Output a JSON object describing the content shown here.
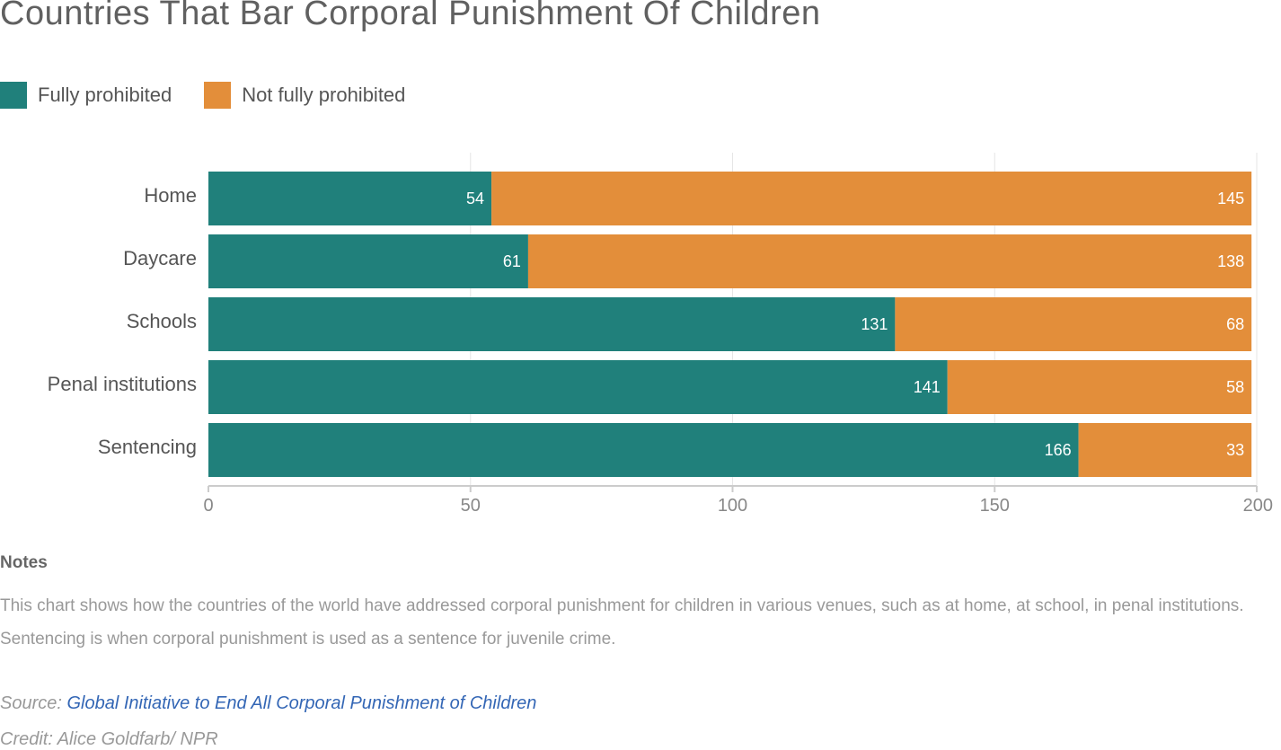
{
  "colors": {
    "fully": "#20807b",
    "not_fully": "#e38e3a",
    "grid": "#e6e6e6",
    "axis": "#cccccc",
    "link": "#3366b5"
  },
  "legend": [
    {
      "label": "Fully prohibited",
      "color": "#20807b"
    },
    {
      "label": "Not fully prohibited",
      "color": "#e38e3a"
    }
  ],
  "chart_data": {
    "type": "bar",
    "orientation": "horizontal",
    "stacked": true,
    "title": "Countries That Bar Corporal Punishment Of Children",
    "categories": [
      "Home",
      "Daycare",
      "Schools",
      "Penal institutions",
      "Sentencing"
    ],
    "series": [
      {
        "name": "Fully prohibited",
        "color": "#20807b",
        "values": [
          54,
          61,
          131,
          141,
          166
        ]
      },
      {
        "name": "Not fully prohibited",
        "color": "#e38e3a",
        "values": [
          145,
          138,
          68,
          58,
          33
        ]
      }
    ],
    "xlim": [
      0,
      200
    ],
    "xticks": [
      0,
      50,
      100,
      150,
      200
    ],
    "xlabel": "",
    "ylabel": "",
    "grid": true,
    "legend_position": "top-left"
  },
  "notes": {
    "heading": "Notes",
    "text": "This chart shows how the countries of the world have addressed corporal punishment for children in various venues, such as at home, at school, in penal institutions. Sentencing is when corporal punishment is used as a sentence for juvenile crime."
  },
  "source": {
    "label": "Source: ",
    "link_text": "Global Initiative to End All Corporal Punishment of Children"
  },
  "credit": "Credit: Alice Goldfarb/ NPR"
}
